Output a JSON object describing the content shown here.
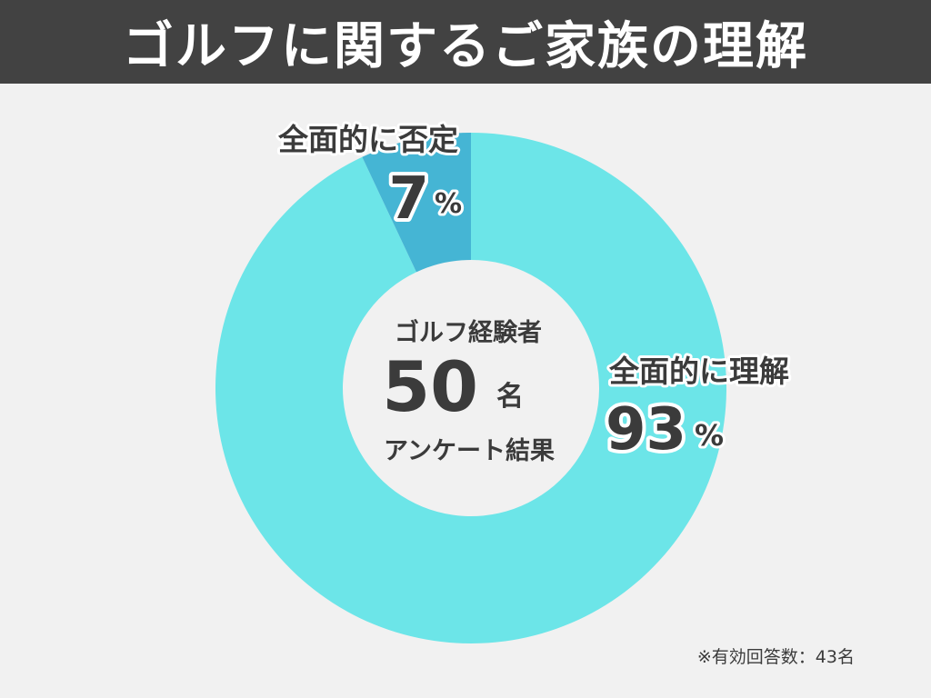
{
  "title": "ゴルフに関するご家族の理解",
  "chart_data": {
    "type": "pie",
    "style": "donut",
    "center": {
      "line1": "ゴルフ経験者",
      "number": "50",
      "unit": "名",
      "line3": "アンケート結果"
    },
    "slices": [
      {
        "label": "全面的に理解",
        "value": 93,
        "display": "93",
        "unit": "%",
        "color": "#6ce5e8"
      },
      {
        "label": "全面的に否定",
        "value": 7,
        "display": "7",
        "unit": "%",
        "color": "#45b5d4"
      }
    ]
  },
  "note": "※有効回答数：43名"
}
